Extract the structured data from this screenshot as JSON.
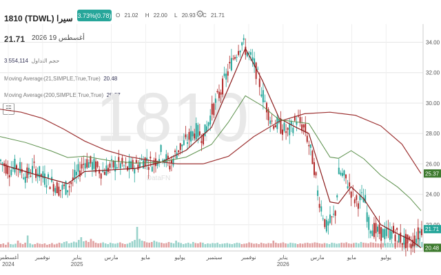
{
  "header": {
    "symbol_line": "1810 (TDWL) سيرا",
    "change_badge": "3.73%(0.78)",
    "ohlc": [
      {
        "label": "O",
        "value": "21.02"
      },
      {
        "label": "H",
        "value": "22.00"
      },
      {
        "label": "L",
        "value": "20.93"
      },
      {
        "label": "C",
        "value": "21.71"
      }
    ],
    "last_price": "21.71",
    "date": "أغسطس 19 2026"
  },
  "indicators": {
    "volume": {
      "label": "حجم التداول",
      "value": "3,554,114"
    },
    "ma21": {
      "label": "Moving Average(21,SIMPLE,True,True)",
      "value": "20.48"
    },
    "ma200": {
      "label": "Moving Average(200,SIMPLE,True,True)",
      "value": "25.37"
    }
  },
  "watermark": "1810",
  "watermark_brand": "DataFN",
  "colors": {
    "up": "#26a69a",
    "down": "#b22a2a",
    "ma21": "#8b1a1a",
    "ma200": "#9c3030",
    "ma_green": "#5a8f4a",
    "ma21_badge": "#3d7a2e",
    "ma200_badge": "#3d7a2e",
    "price_badge": "#26a69a"
  },
  "chart_data": {
    "type": "candlestick",
    "x_ticks": [
      "أغسطس\n2024",
      "نوفمبر",
      "يناير\n2025",
      "مارس",
      "مايو",
      "يوليو",
      "سبتمبر",
      "نوفمبر",
      "يناير\n2026",
      "مارس",
      "مايو",
      "يوليو"
    ],
    "y_ticks": [
      "22.00",
      "24.00",
      "26.00",
      "28.00",
      "30.00",
      "32.00",
      "34.00"
    ],
    "ylim": [
      20.5,
      35.2
    ],
    "grid": true,
    "price_path": [
      [
        0,
        26.2
      ],
      [
        0.02,
        25.6
      ],
      [
        0.04,
        25.9
      ],
      [
        0.06,
        25.2
      ],
      [
        0.08,
        25.7
      ],
      [
        0.1,
        25.1
      ],
      [
        0.12,
        24.8
      ],
      [
        0.14,
        24.3
      ],
      [
        0.16,
        24.5
      ],
      [
        0.18,
        25.3
      ],
      [
        0.2,
        26.2
      ],
      [
        0.22,
        25.9
      ],
      [
        0.24,
        25.5
      ],
      [
        0.26,
        25.8
      ],
      [
        0.28,
        26.0
      ],
      [
        0.3,
        25.7
      ],
      [
        0.32,
        25.9
      ],
      [
        0.34,
        26.3
      ],
      [
        0.36,
        26.0
      ],
      [
        0.38,
        26.8
      ],
      [
        0.4,
        25.9
      ],
      [
        0.42,
        27.0
      ],
      [
        0.44,
        27.5
      ],
      [
        0.46,
        28.2
      ],
      [
        0.48,
        27.8
      ],
      [
        0.5,
        29.5
      ],
      [
        0.52,
        30.8
      ],
      [
        0.53,
        31.5
      ],
      [
        0.55,
        33.0
      ],
      [
        0.57,
        34.0
      ],
      [
        0.58,
        33.5
      ],
      [
        0.6,
        32.5
      ],
      [
        0.62,
        30.5
      ],
      [
        0.64,
        28.8
      ],
      [
        0.66,
        28.5
      ],
      [
        0.68,
        28.0
      ],
      [
        0.7,
        29.0
      ],
      [
        0.72,
        28.2
      ],
      [
        0.74,
        26.0
      ],
      [
        0.75,
        24.0
      ],
      [
        0.77,
        21.8
      ],
      [
        0.79,
        22.6
      ],
      [
        0.8,
        25.5
      ],
      [
        0.82,
        24.8
      ],
      [
        0.84,
        23.5
      ],
      [
        0.86,
        23.8
      ],
      [
        0.87,
        22.0
      ],
      [
        0.89,
        21.5
      ],
      [
        0.91,
        21.4
      ],
      [
        0.93,
        21.5
      ],
      [
        0.95,
        21.0
      ],
      [
        0.97,
        20.7
      ],
      [
        0.98,
        21.1
      ],
      [
        0.995,
        21.71
      ]
    ],
    "ma21_path": [
      [
        0,
        26.0
      ],
      [
        0.06,
        25.5
      ],
      [
        0.12,
        25.0
      ],
      [
        0.16,
        24.7
      ],
      [
        0.2,
        25.5
      ],
      [
        0.26,
        25.6
      ],
      [
        0.32,
        25.7
      ],
      [
        0.38,
        26.1
      ],
      [
        0.44,
        26.9
      ],
      [
        0.5,
        28.4
      ],
      [
        0.54,
        31.0
      ],
      [
        0.58,
        33.6
      ],
      [
        0.62,
        31.5
      ],
      [
        0.66,
        29.0
      ],
      [
        0.7,
        28.4
      ],
      [
        0.73,
        28.0
      ],
      [
        0.75,
        26.2
      ],
      [
        0.78,
        23.5
      ],
      [
        0.8,
        23.4
      ],
      [
        0.83,
        24.5
      ],
      [
        0.86,
        23.7
      ],
      [
        0.9,
        22.0
      ],
      [
        0.94,
        21.4
      ],
      [
        0.97,
        21.0
      ],
      [
        0.995,
        20.48
      ]
    ],
    "ma200_path": [
      [
        0,
        29.6
      ],
      [
        0.05,
        29.4
      ],
      [
        0.1,
        29.0
      ],
      [
        0.15,
        28.3
      ],
      [
        0.2,
        27.5
      ],
      [
        0.25,
        26.9
      ],
      [
        0.3,
        26.5
      ],
      [
        0.36,
        26.2
      ],
      [
        0.42,
        26.0
      ],
      [
        0.48,
        26.0
      ],
      [
        0.54,
        26.5
      ],
      [
        0.6,
        27.8
      ],
      [
        0.66,
        28.8
      ],
      [
        0.72,
        29.3
      ],
      [
        0.78,
        29.4
      ],
      [
        0.84,
        29.2
      ],
      [
        0.9,
        28.5
      ],
      [
        0.95,
        27.3
      ],
      [
        0.995,
        25.37
      ]
    ],
    "volume_profile": [
      0.1,
      0.12,
      0.08,
      0.15,
      0.1,
      0.09,
      0.11,
      0.2,
      0.13,
      0.1,
      0.14,
      0.35,
      0.12,
      0.09,
      0.1,
      0.13,
      0.11,
      0.1,
      0.12,
      0.08,
      0.1,
      0.13,
      0.09,
      0.11,
      0.14,
      0.12,
      0.16,
      0.18,
      0.12,
      0.14,
      0.17,
      0.15,
      0.22,
      0.3,
      0.18,
      0.2,
      0.16,
      0.25,
      0.19,
      0.14,
      0.12,
      0.13,
      0.15,
      0.12,
      0.1,
      0.14,
      0.12,
      0.11,
      0.13,
      0.15,
      0.12,
      0.1,
      0.11,
      0.14,
      0.18,
      0.22,
      0.6,
      0.25,
      0.2,
      0.18,
      0.15,
      0.14,
      0.16,
      0.2,
      0.17,
      0.15,
      0.14,
      0.12,
      0.13,
      0.16,
      0.14,
      0.12,
      0.2,
      0.15,
      0.13,
      0.1,
      0.12,
      0.14,
      0.11,
      0.16,
      0.13,
      0.12,
      0.15,
      0.14,
      0.1,
      0.12,
      0.11,
      0.13,
      0.12,
      0.14,
      0.1,
      0.11,
      0.12,
      0.13,
      0.11,
      0.1,
      0.12,
      0.14,
      0.13,
      0.1,
      0.11,
      0.12,
      0.15,
      0.13,
      0.11,
      0.12,
      0.1,
      0.14,
      0.12,
      0.11,
      0.13,
      0.12,
      0.2,
      0.14,
      0.12,
      0.13,
      0.15,
      0.12,
      0.11,
      0.14,
      0.13,
      0.12,
      0.1,
      0.12,
      0.11,
      0.13,
      0.14,
      0.12,
      0.13,
      0.15,
      0.14,
      0.12,
      0.11,
      0.13,
      0.12,
      0.1,
      0.14,
      0.13,
      0.11,
      0.12,
      0.14,
      0.13,
      0.15,
      0.12,
      0.11,
      0.13,
      0.14,
      0.12,
      0.16,
      0.14,
      0.13,
      0.12,
      0.15,
      0.14,
      0.13,
      0.12,
      0.11,
      0.13,
      0.12,
      0.14,
      0.13,
      0.12,
      0.14,
      0.2,
      0.15,
      0.12,
      0.13,
      0.14,
      0.12,
      0.11,
      0.13,
      0.12,
      0.28,
      0.16
    ]
  }
}
